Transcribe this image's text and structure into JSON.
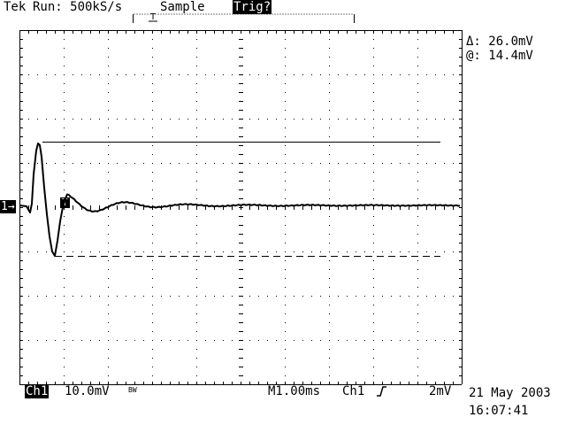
{
  "top_bar": {
    "brand": "Tek",
    "run_status": "Run: 500kS/s",
    "acq_mode": "Sample",
    "trigger_state": "Trig?"
  },
  "trigger_marker": "T",
  "readouts": {
    "delta": "Δ: 26.0mV",
    "at": "@: 14.4mV"
  },
  "channel_marker": "1→",
  "bottom_bar": {
    "channel": "Ch1",
    "volts_div": "10.0mV",
    "bw_limit": "BW",
    "timebase": "M1.00ms",
    "trigger_source": "Ch1",
    "trigger_slope_icon": "rising-edge-icon",
    "trigger_level": "2mV",
    "date": "21 May 2003",
    "time": "16:07:41"
  },
  "waveform": {
    "x_per_div_ms": 1.0,
    "y_per_div_mV": 10.0,
    "cursor_upper_mV": 14.4,
    "cursor_lower_mV": -11.6
  },
  "colors": {
    "background": "#ffffff",
    "trace": "#000000",
    "grid": "#000000"
  }
}
